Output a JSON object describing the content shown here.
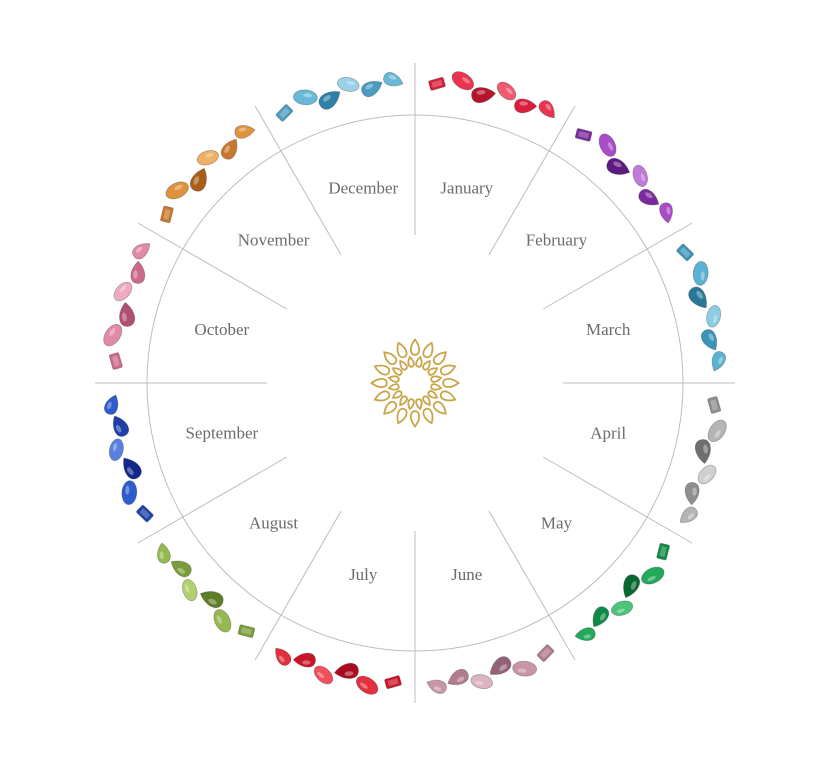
{
  "wheel": {
    "months": [
      {
        "id": "january",
        "label": "January",
        "colors": [
          "#d81e3a",
          "#e8344e",
          "#b5142c",
          "#f05a6e"
        ]
      },
      {
        "id": "february",
        "label": "February",
        "colors": [
          "#7a2a9e",
          "#a84cc8",
          "#5e1a80",
          "#c07ad8"
        ]
      },
      {
        "id": "march",
        "label": "March",
        "colors": [
          "#3a94b8",
          "#5cb2d2",
          "#2a7898",
          "#8ccde3"
        ]
      },
      {
        "id": "april",
        "label": "April",
        "colors": [
          "#8e8e8e",
          "#b5b5b5",
          "#6e6e6e",
          "#d0d0d0"
        ]
      },
      {
        "id": "may",
        "label": "May",
        "colors": [
          "#0e8a45",
          "#22a95a",
          "#06692f",
          "#4cc47a"
        ]
      },
      {
        "id": "june",
        "label": "June",
        "colors": [
          "#b27a8f",
          "#c996a8",
          "#946276",
          "#dcb3c2"
        ]
      },
      {
        "id": "july",
        "label": "July",
        "colors": [
          "#cc1428",
          "#e2303f",
          "#a80c1e",
          "#f0505c"
        ]
      },
      {
        "id": "august",
        "label": "August",
        "colors": [
          "#7a9c3a",
          "#96b850",
          "#5e7e26",
          "#b2d06e"
        ]
      },
      {
        "id": "september",
        "label": "September",
        "colors": [
          "#1c3fa8",
          "#2f5ccc",
          "#10298a",
          "#5880e0"
        ]
      },
      {
        "id": "october",
        "label": "October",
        "colors": [
          "#cc6a8a",
          "#e08aa6",
          "#b04e70",
          "#eeaac0"
        ]
      },
      {
        "id": "november",
        "label": "November",
        "colors": [
          "#c9772a",
          "#e0923e",
          "#a85e18",
          "#eeb066"
        ]
      },
      {
        "id": "december",
        "label": "December",
        "colors": [
          "#4a9cc0",
          "#6ab8d8",
          "#2f80a6",
          "#98d2e8"
        ]
      }
    ]
  },
  "colors": {
    "ring_line": "#bdbdbd",
    "logo_gold": "#c9a449",
    "logo_gold_dark": "#a8842e",
    "label_text": "#6b6b6b"
  },
  "icons": {
    "center_logo": "gold-sunburst-logo-icon",
    "gem": "gemstone-icon"
  }
}
